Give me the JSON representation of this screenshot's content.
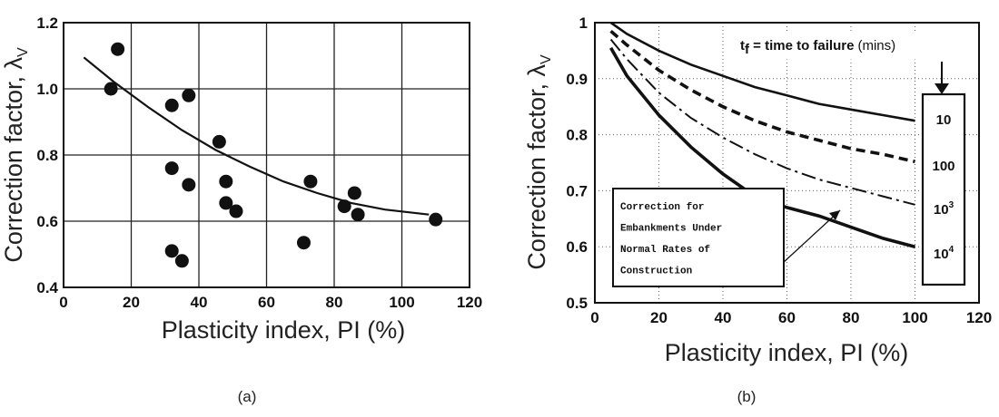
{
  "chart_data": [
    {
      "id": "a",
      "type": "scatter",
      "caption": "(a)",
      "xlabel": "Plasticity index, PI (%)",
      "ylabel": "Correction factor, λ",
      "ylabel_sub": "V",
      "xlim": [
        0,
        120
      ],
      "ylim": [
        0.4,
        1.2
      ],
      "xticks": [
        "0",
        "20",
        "40",
        "60",
        "80",
        "100",
        "120"
      ],
      "yticks": [
        "0.4",
        "0.6",
        "0.8",
        "1.0",
        "1.2"
      ],
      "grid": true,
      "points": [
        {
          "x": 14,
          "y": 1.0
        },
        {
          "x": 16,
          "y": 1.12
        },
        {
          "x": 32,
          "y": 0.95
        },
        {
          "x": 37,
          "y": 0.98
        },
        {
          "x": 32,
          "y": 0.76
        },
        {
          "x": 37,
          "y": 0.71
        },
        {
          "x": 46,
          "y": 0.84
        },
        {
          "x": 48,
          "y": 0.72
        },
        {
          "x": 48,
          "y": 0.655
        },
        {
          "x": 51,
          "y": 0.63
        },
        {
          "x": 32,
          "y": 0.51
        },
        {
          "x": 35,
          "y": 0.48
        },
        {
          "x": 71,
          "y": 0.535
        },
        {
          "x": 73,
          "y": 0.72
        },
        {
          "x": 83,
          "y": 0.645
        },
        {
          "x": 86,
          "y": 0.685
        },
        {
          "x": 87,
          "y": 0.62
        },
        {
          "x": 110,
          "y": 0.605
        }
      ],
      "trend_curve": {
        "x": [
          6,
          15,
          25,
          35,
          45,
          55,
          65,
          75,
          85,
          95,
          108
        ],
        "y": [
          1.095,
          1.02,
          0.945,
          0.875,
          0.815,
          0.765,
          0.72,
          0.685,
          0.655,
          0.635,
          0.62
        ]
      }
    },
    {
      "id": "b",
      "type": "line",
      "caption": "(b)",
      "xlabel": "Plasticity index, PI (%)",
      "ylabel": "Correction factor, λ",
      "ylabel_sub": "V",
      "xlim": [
        0,
        120
      ],
      "ylim": [
        0.5,
        1.0
      ],
      "xticks": [
        "0",
        "20",
        "40",
        "60",
        "80",
        "100",
        "120"
      ],
      "yticks": [
        "0.5",
        "0.6",
        "0.7",
        "0.8",
        "0.9",
        "1"
      ],
      "grid": true,
      "legend_title_bold": "t",
      "legend_title_sub": "f",
      "legend_title_rest": " = time to failure",
      "legend_title_units": "(mins)",
      "x": [
        5,
        10,
        20,
        30,
        40,
        50,
        60,
        70,
        80,
        90,
        100
      ],
      "series": [
        {
          "name": "10",
          "style": "solid",
          "values": [
            1.0,
            0.98,
            0.95,
            0.925,
            0.905,
            0.885,
            0.87,
            0.855,
            0.845,
            0.835,
            0.825
          ]
        },
        {
          "name": "100",
          "style": "dashed",
          "values": [
            0.985,
            0.96,
            0.915,
            0.88,
            0.85,
            0.825,
            0.805,
            0.79,
            0.775,
            0.765,
            0.752
          ]
        },
        {
          "name": "10^3",
          "style": "dashdot",
          "values": [
            0.97,
            0.935,
            0.875,
            0.83,
            0.795,
            0.765,
            0.74,
            0.72,
            0.705,
            0.69,
            0.675
          ]
        },
        {
          "name": "10^4",
          "style": "thick",
          "values": [
            0.955,
            0.905,
            0.835,
            0.778,
            0.73,
            0.69,
            0.67,
            0.655,
            0.635,
            0.615,
            0.6
          ]
        }
      ],
      "series_labels": [
        {
          "base": "10",
          "sup": ""
        },
        {
          "base": "100",
          "sup": ""
        },
        {
          "base": "10",
          "sup": "3"
        },
        {
          "base": "10",
          "sup": "4"
        }
      ],
      "annotation_lines": [
        "Correction for",
        "Embankments Under",
        "Normal Rates of",
        "Construction"
      ]
    }
  ]
}
